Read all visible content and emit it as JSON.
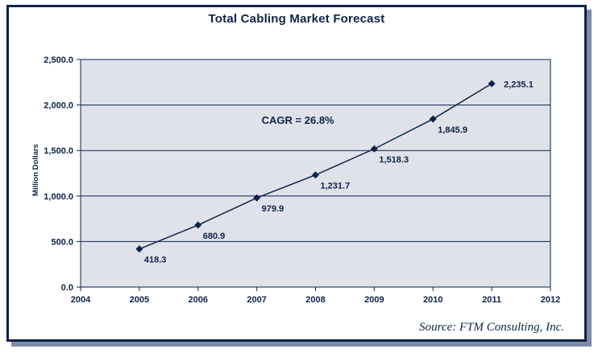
{
  "header": {
    "title": "Total Cabling Market Forecast"
  },
  "source": {
    "text": "Source:  FTM Consulting, Inc."
  },
  "colors": {
    "navy": "#0e2247",
    "plot_bg": "#dfe2ea",
    "frame_shadow": "#7e8ca6",
    "background": "#ffffff"
  },
  "chart_data": {
    "type": "line",
    "title": "Total Cabling Market Forecast",
    "xlabel": "",
    "ylabel": "Million Dollars",
    "x": [
      2005,
      2006,
      2007,
      2008,
      2009,
      2010,
      2011
    ],
    "values": [
      418.3,
      680.9,
      979.9,
      1231.7,
      1518.3,
      1845.9,
      2235.1
    ],
    "point_labels": [
      "418.3",
      "680.9",
      "979.9",
      "1,231.7",
      "1,518.3",
      "1,845.9",
      "2,235.1"
    ],
    "xlim": [
      2004,
      2012
    ],
    "ylim": [
      0,
      2500
    ],
    "xticks": [
      2004,
      2005,
      2006,
      2007,
      2008,
      2009,
      2010,
      2011,
      2012
    ],
    "yticks": [
      0,
      500,
      1000,
      1500,
      2000,
      2500
    ],
    "ytick_labels": [
      "0.0",
      "500.0",
      "1,000.0",
      "1,500.0",
      "2,000.0",
      "2,500.0"
    ],
    "grid": "horizontal",
    "legend": "none",
    "marker": "diamond",
    "annotation": {
      "text": "CAGR = 26.8%",
      "x": 2007.7,
      "y": 1830
    },
    "source": "Source:  FTM Consulting, Inc."
  }
}
